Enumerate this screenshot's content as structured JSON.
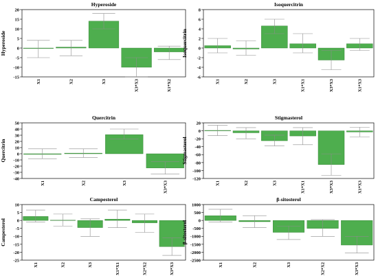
{
  "colors": {
    "bar": "#4eae4e",
    "bar_stroke": "#2e7d2e",
    "error": "#8c8c8c",
    "axis": "#000000"
  },
  "chart_data": [
    {
      "type": "bar",
      "title": "Hyperoside",
      "ylabel": "Hyperoside",
      "categories": [
        "X1",
        "X2",
        "X3",
        "X3*X3",
        "X1*X2"
      ],
      "values": [
        0,
        0.5,
        14,
        -10,
        -2
      ],
      "error_low": [
        -5,
        -4,
        10,
        -15,
        -6
      ],
      "error_high": [
        4,
        4,
        18,
        -5,
        1
      ],
      "ylim": [
        -15,
        20
      ],
      "yticks": [
        -15,
        -10,
        -5,
        0,
        5,
        10,
        15,
        20
      ]
    },
    {
      "type": "bar",
      "title": "Isoquercitrin",
      "ylabel": "Isoquercitrin",
      "categories": [
        "X1",
        "X2",
        "X3",
        "X1*X1",
        "X3*X3",
        "X1*X3"
      ],
      "values": [
        0.5,
        -0.2,
        4.6,
        0.9,
        -2.5,
        0.9
      ],
      "error_low": [
        -1,
        -1.5,
        3,
        -1,
        -4.5,
        -0.5
      ],
      "error_high": [
        2,
        1.5,
        6,
        3,
        -0.5,
        2
      ],
      "ylim": [
        -6,
        8
      ],
      "yticks": [
        -6,
        -4,
        -2,
        0,
        2,
        4,
        6,
        8
      ]
    },
    {
      "type": "bar",
      "title": "Quercitrin",
      "ylabel": "Quercitrin",
      "categories": [
        "X1",
        "X2",
        "X3",
        "X3*X3"
      ],
      "values": [
        -1,
        1,
        31,
        -23
      ],
      "error_low": [
        -8,
        -6,
        24,
        -33
      ],
      "error_high": [
        8,
        8,
        40,
        -13
      ],
      "ylim": [
        -40,
        50
      ],
      "yticks": [
        -40,
        -30,
        -20,
        -10,
        0,
        10,
        20,
        30,
        40,
        50
      ]
    },
    {
      "type": "bar",
      "title": "Stigmasterol",
      "ylabel": "Stigmasterol",
      "categories": [
        "X1",
        "X2",
        "X3",
        "X1*X1",
        "X3*X3",
        "X1*X3"
      ],
      "values": [
        1,
        -5,
        -25,
        -13,
        -85,
        -3
      ],
      "error_low": [
        -12,
        -20,
        -38,
        -35,
        -112,
        -15
      ],
      "error_high": [
        14,
        8,
        -11,
        8,
        -58,
        9
      ],
      "ylim": [
        -120,
        20
      ],
      "yticks": [
        -120,
        -100,
        -80,
        -60,
        -40,
        -20,
        0,
        20
      ]
    },
    {
      "type": "bar",
      "title": "Campesterol",
      "ylabel": "Campesterol",
      "categories": [
        "X1",
        "X2",
        "X3",
        "X1*X1",
        "X2*X2",
        "X3*X3"
      ],
      "values": [
        2.5,
        0.2,
        -4.5,
        0.8,
        -1.5,
        -16.5
      ],
      "error_low": [
        -1,
        -3.5,
        -10,
        -4.5,
        -7.5,
        -22
      ],
      "error_high": [
        6.5,
        4,
        1,
        6.5,
        4,
        -11
      ],
      "ylim": [
        -25,
        10
      ],
      "yticks": [
        -25,
        -20,
        -15,
        -10,
        -5,
        0,
        5,
        10
      ]
    },
    {
      "type": "bar",
      "title": "β-sitosterol",
      "ylabel": "β-sitosterol",
      "categories": [
        "X1",
        "X2",
        "X3",
        "X2*X2",
        "X3*X3"
      ],
      "values": [
        300,
        -80,
        -750,
        -500,
        -1550
      ],
      "error_low": [
        -100,
        -450,
        -1200,
        -1000,
        -2050
      ],
      "error_high": [
        700,
        300,
        -350,
        50,
        -1000
      ],
      "ylim": [
        -2500,
        1000
      ],
      "yticks": [
        -2500,
        -2000,
        -1500,
        -1000,
        -500,
        0,
        500,
        1000
      ]
    }
  ]
}
